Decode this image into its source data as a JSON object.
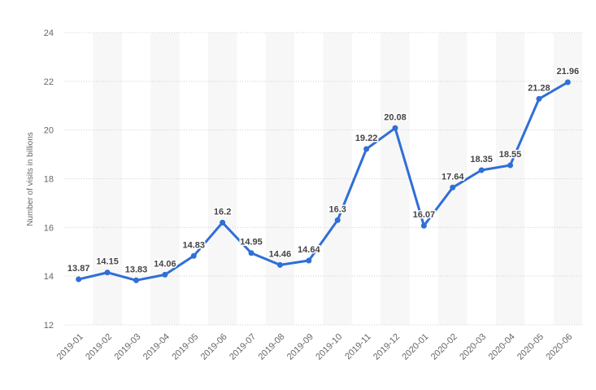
{
  "colors": {
    "line": "#2f6fd6",
    "band": "#f7f7f7",
    "grid": "#d0d0d0"
  },
  "chart_data": {
    "type": "line",
    "title": "",
    "xlabel": "",
    "ylabel": "Number of visits in billions",
    "ylim": [
      12,
      24
    ],
    "yticks": [
      "12",
      "14",
      "16",
      "18",
      "20",
      "22",
      "24"
    ],
    "grid": true,
    "categories": [
      "2019-01",
      "2019-02",
      "2019-03",
      "2019-04",
      "2019-05",
      "2019-06",
      "2019-07",
      "2019-08",
      "2019-09",
      "2019-10",
      "2019-11",
      "2019-12",
      "2020-01",
      "2020-02",
      "2020-03",
      "2020-04",
      "2020-05",
      "2020-06"
    ],
    "values": [
      13.87,
      14.15,
      13.83,
      14.06,
      14.83,
      16.2,
      14.95,
      14.46,
      14.64,
      16.3,
      19.22,
      20.08,
      16.07,
      17.64,
      18.35,
      18.55,
      21.28,
      21.96
    ],
    "labels": [
      "13.87",
      "14.15",
      "13.83",
      "14.06",
      "14.83",
      "16.2",
      "14.95",
      "14.46",
      "14.64",
      "16.3",
      "19.22",
      "20.08",
      "16.07",
      "17.64",
      "18.35",
      "18.55",
      "21.28",
      "21.96"
    ]
  }
}
